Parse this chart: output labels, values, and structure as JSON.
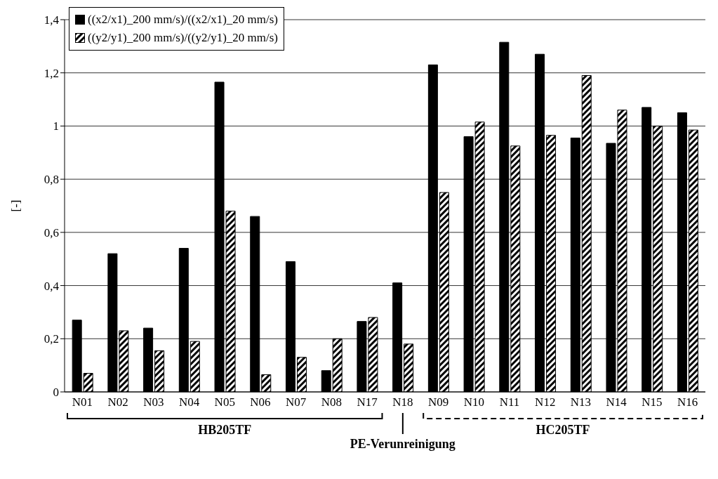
{
  "chart_data": {
    "type": "bar",
    "ylabel": "[-]",
    "categories": [
      "N01",
      "N02",
      "N03",
      "N04",
      "N05",
      "N06",
      "N07",
      "N08",
      "N17",
      "N18",
      "N09",
      "N10",
      "N11",
      "N12",
      "N13",
      "N14",
      "N15",
      "N16"
    ],
    "series": [
      {
        "name": "((x2/x1)_200 mm/s)/((x2/x1)_20 mm/s)",
        "color": "#000000",
        "values": [
          0.27,
          0.52,
          0.24,
          0.54,
          1.165,
          0.66,
          0.49,
          0.08,
          0.265,
          0.41,
          1.23,
          0.96,
          1.315,
          1.27,
          0.955,
          0.935,
          1.07,
          1.05
        ]
      },
      {
        "name": "((y2/y1)_200 mm/s)/((y2/y1)_20 mm/s)",
        "color": "#000000",
        "values": [
          0.07,
          0.23,
          0.155,
          0.19,
          0.68,
          0.065,
          0.13,
          0.2,
          0.28,
          0.18,
          0.75,
          1.015,
          0.925,
          0.965,
          1.19,
          1.06,
          1.0,
          0.985
        ]
      }
    ],
    "ylim": [
      0,
      1.4
    ],
    "yticks": [
      0,
      {
        "value": 0.2,
        "label": "0,2"
      },
      {
        "value": 0.4,
        "label": "0,4"
      },
      {
        "value": 0.6,
        "label": "0,6"
      },
      {
        "value": 0.8,
        "label": "0,8"
      },
      1,
      {
        "value": 1.2,
        "label": "1,2"
      },
      {
        "value": 1.4,
        "label": "1,4"
      }
    ],
    "grid": "y",
    "legend": "top left",
    "annotations": [
      "HB205TF",
      "PE-Verunreinigung",
      "HC205TF"
    ]
  }
}
